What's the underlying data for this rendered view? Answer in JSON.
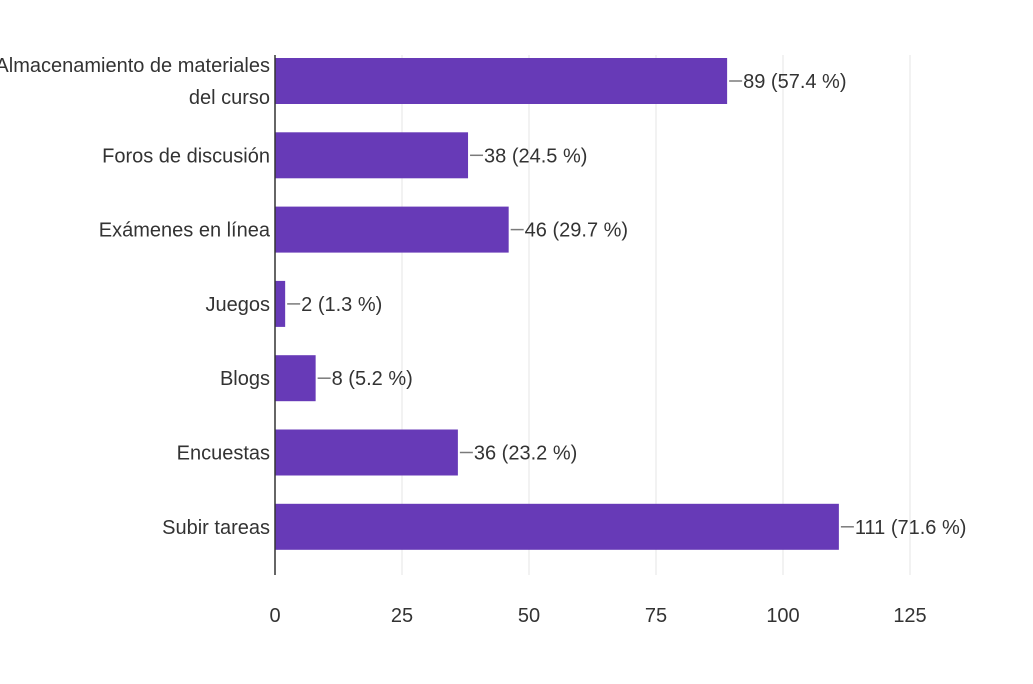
{
  "chart_data": {
    "type": "bar",
    "orientation": "horizontal",
    "title": "",
    "xlabel": "",
    "ylabel": "",
    "categories": [
      [
        "Almacenamiento de materiales",
        "del curso"
      ],
      [
        "Foros de discusión"
      ],
      [
        "Exámenes en línea"
      ],
      [
        "Juegos"
      ],
      [
        "Blogs"
      ],
      [
        "Encuestas"
      ],
      [
        "Subir tareas"
      ]
    ],
    "values": [
      89,
      38,
      46,
      2,
      8,
      36,
      111
    ],
    "data_labels": [
      "89 (57.4 %)",
      "38 (24.5 %)",
      "46 (29.7 %)",
      "2 (1.3 %)",
      "8 (5.2 %)",
      "36 (23.2 %)",
      "111 (71.6 %)"
    ],
    "xlim": [
      0,
      125
    ],
    "x_ticks": [
      0,
      25,
      50,
      75,
      100,
      125
    ],
    "grid": true,
    "legend": "none",
    "bar_color": "#673ab7"
  }
}
